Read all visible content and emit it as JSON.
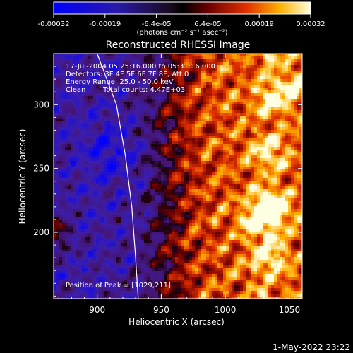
{
  "colorbar": {
    "ticks": [
      "-0.00032",
      "-0.00019",
      "-6.4e-05",
      "6.4e-05",
      "0.00019",
      "0.00032"
    ],
    "unit_label": "(photons cm⁻² s⁻¹ asec⁻²)",
    "range": [
      -0.00032,
      0.00032
    ]
  },
  "chart_data": {
    "type": "heatmap",
    "title": "Reconstructed RHESSI Image",
    "xlabel": "Heliocentric X (arcsec)",
    "ylabel": "Heliocentric Y (arcsec)",
    "xlim": [
      866,
      1060
    ],
    "ylim": [
      148,
      340
    ],
    "x_ticks": [
      900,
      950,
      1000,
      1050
    ],
    "y_ticks": [
      200,
      250,
      300
    ],
    "grid": false,
    "annotations": {
      "time_range": "17-Jul-2004 05:25:16.000 to 05:31:16.000",
      "detectors": "Detectors: 3F 4F 5F 6F 7F 8F, Att 0",
      "energy_range": "Energy Range: 25.0 - 50.0 keV",
      "method": "Clean",
      "total_counts": "Total counts: 4.47E+03",
      "peak": "Position of Peak = [1029,211]"
    },
    "peak_position": [
      1029,
      211
    ],
    "limb_curve": [
      [
        900,
        340
      ],
      [
        915,
        300
      ],
      [
        922,
        260
      ],
      [
        927,
        220
      ],
      [
        930,
        180
      ],
      [
        932,
        148
      ]
    ],
    "value_range": [
      -0.00032,
      0.00032
    ]
  },
  "footer": {
    "date": "1-May-2022 23:22"
  }
}
